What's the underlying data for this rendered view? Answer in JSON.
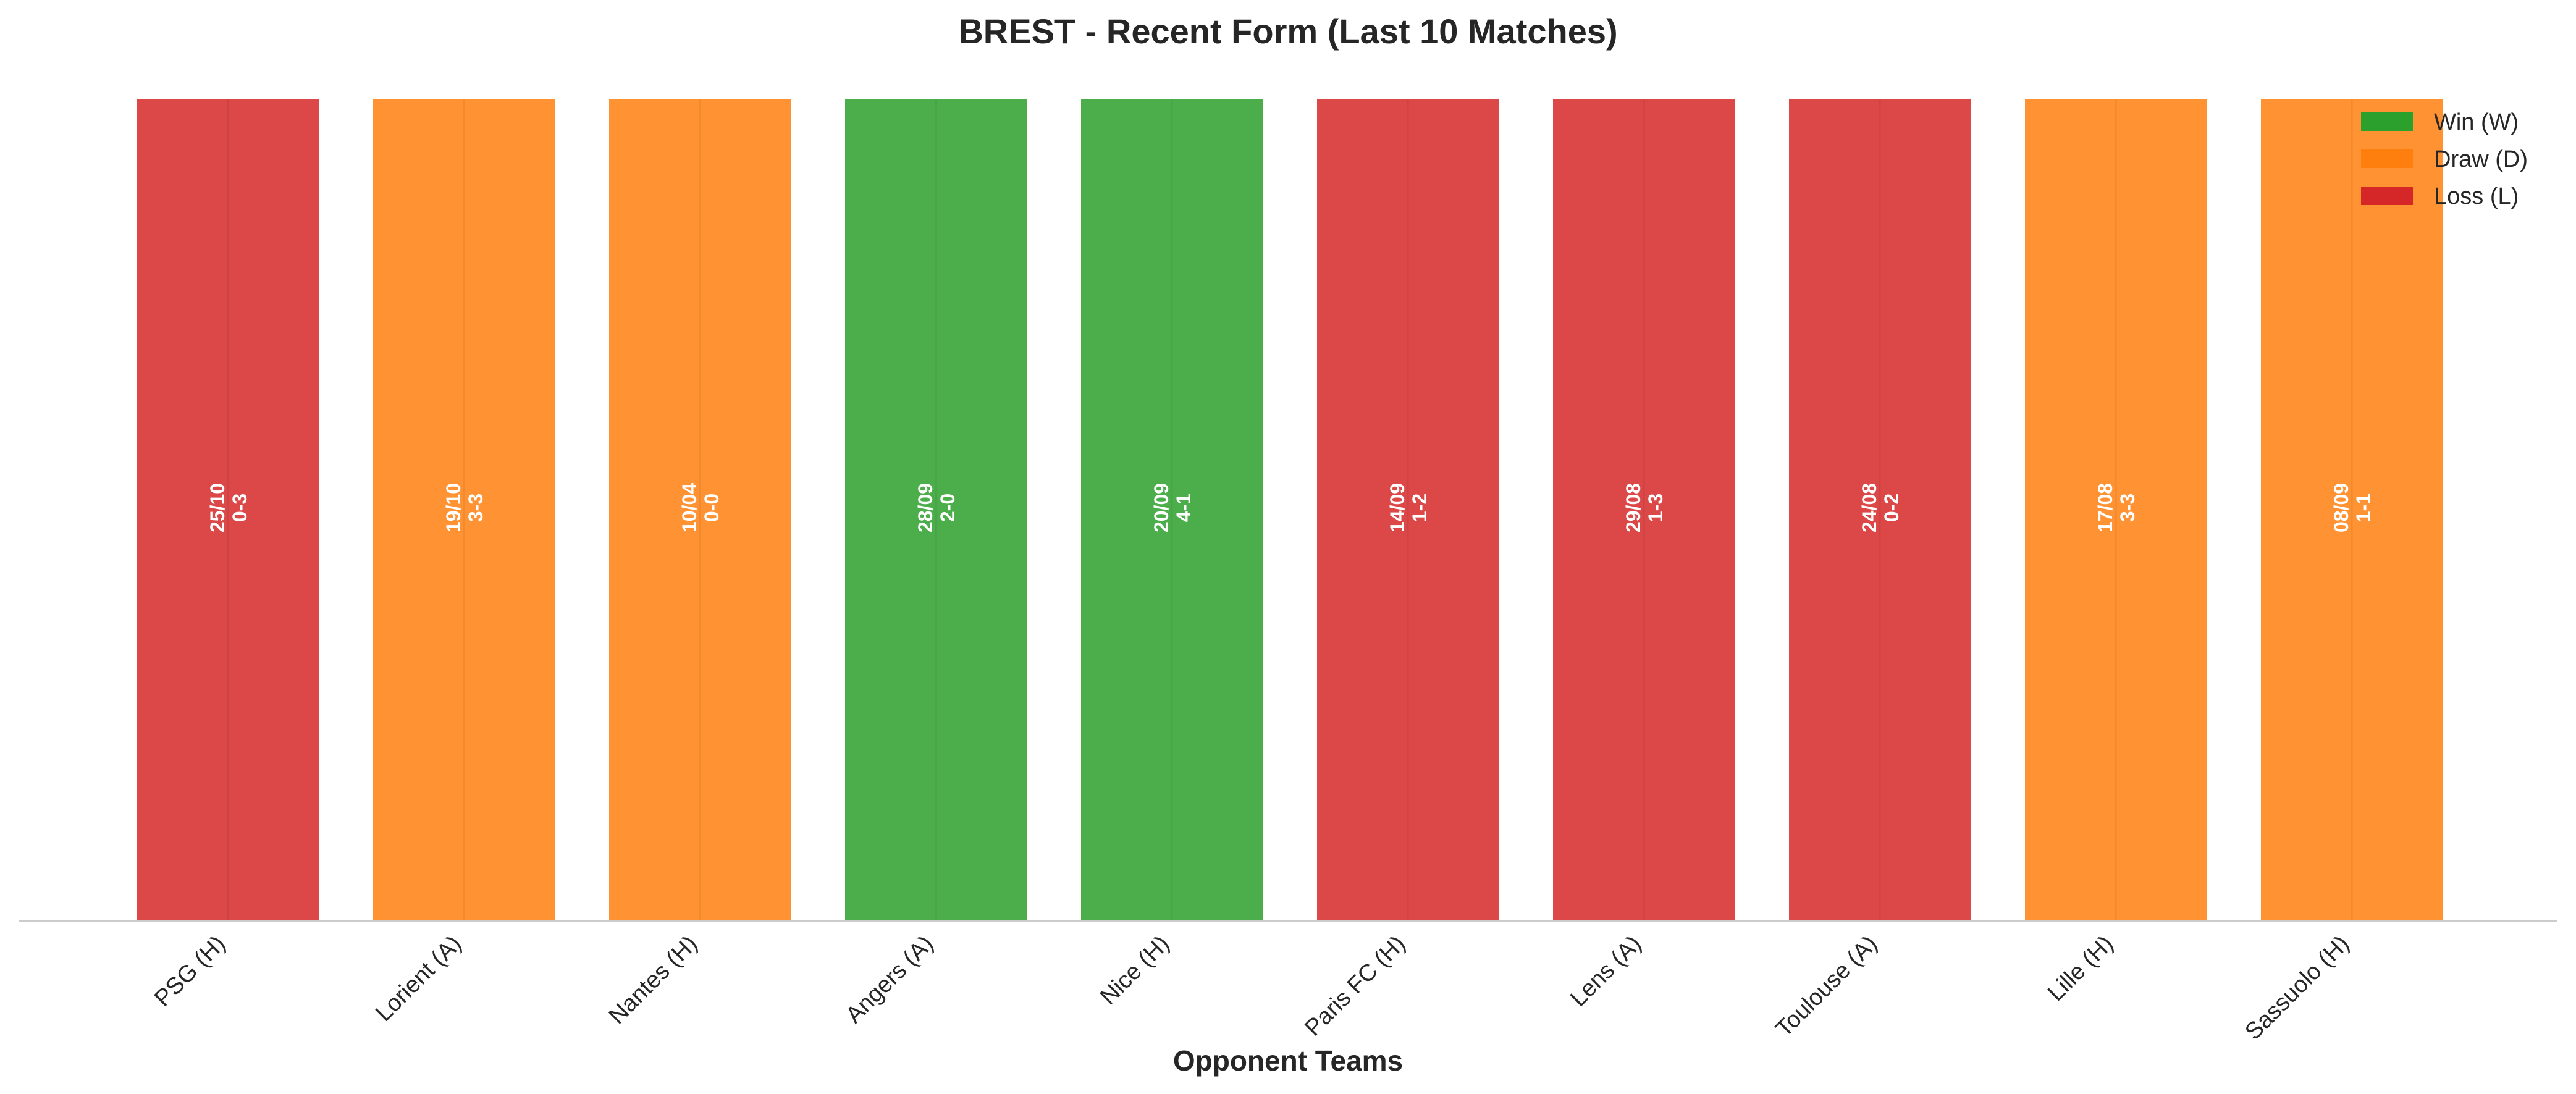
{
  "chart_data": {
    "type": "bar",
    "title": "BREST - Recent Form (Last 10 Matches)",
    "xlabel": "Opponent Teams",
    "ylabel": "",
    "ylim": [
      0,
      1
    ],
    "grid": false,
    "legend_position": "top-right",
    "categories": [
      "PSG (H)",
      "Lorient (A)",
      "Nantes (H)",
      "Angers (A)",
      "Nice (H)",
      "Paris FC (H)",
      "Lens (A)",
      "Toulouse (A)",
      "Lille (H)",
      "Sassuolo (H)"
    ],
    "values": [
      1,
      1,
      1,
      1,
      1,
      1,
      1,
      1,
      1,
      1
    ],
    "results": [
      "L",
      "D",
      "D",
      "W",
      "W",
      "L",
      "L",
      "L",
      "D",
      "D"
    ],
    "dates": [
      "25/10",
      "19/10",
      "10/04",
      "28/09",
      "20/09",
      "14/09",
      "29/08",
      "24/08",
      "17/08",
      "08/09"
    ],
    "scores": [
      "0-3",
      "3-3",
      "0-0",
      "2-0",
      "4-1",
      "1-2",
      "1-3",
      "0-2",
      "3-3",
      "1-1"
    ],
    "legend": [
      {
        "key": "W",
        "label": "Win (W)",
        "color": "#2ca02c"
      },
      {
        "key": "D",
        "label": "Draw (D)",
        "color": "#ff7f0e"
      },
      {
        "key": "L",
        "label": "Loss (L)",
        "color": "#d62728"
      }
    ]
  }
}
